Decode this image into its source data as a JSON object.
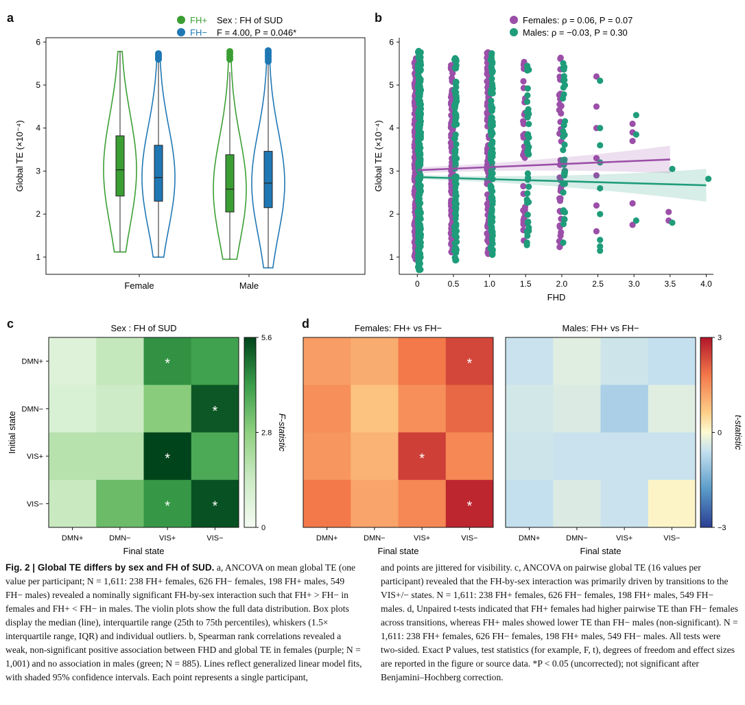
{
  "colors": {
    "fh_pos": "#3a9e32",
    "fh_neg": "#1f77b4",
    "females": "#9b4fa8",
    "males": "#1f9c7a"
  },
  "panel_a": {
    "letter": "a",
    "legend": {
      "fh_pos": "FH+",
      "fh_neg": "FH−",
      "test_title": "Sex : FH of SUD",
      "test_stat": "F = 4.00, P = 0.046*"
    }
  },
  "panel_b": {
    "letter": "b",
    "legend": {
      "females": "Females: ρ = 0.06, P = 0.07",
      "males": "Males: ρ = −0.03, P = 0.30"
    }
  },
  "panel_c": {
    "letter": "c"
  },
  "panel_d": {
    "letter": "d"
  },
  "chart_data": [
    {
      "type": "violin",
      "panel": "a",
      "title": "",
      "xlabel": "",
      "ylabel": "Global TE (×10⁻⁴)",
      "ylim": [
        0.6,
        6.1
      ],
      "yticks": [
        "1",
        "2",
        "3",
        "4",
        "5",
        "6"
      ],
      "categories": [
        "Female",
        "Male"
      ],
      "series": [
        {
          "name": "FH+",
          "groups": [
            {
              "category": "Female",
              "min": 1.12,
              "q1": 2.42,
              "median": 3.03,
              "q3": 3.82,
              "max": 5.78,
              "outliers": []
            },
            {
              "category": "Male",
              "min": 0.95,
              "q1": 2.05,
              "median": 2.58,
              "q3": 3.38,
              "max": 5.3,
              "outliers": [
                5.6,
                5.65,
                5.72,
                5.78
              ]
            }
          ]
        },
        {
          "name": "FH−",
          "groups": [
            {
              "category": "Female",
              "min": 1.0,
              "q1": 2.3,
              "median": 2.85,
              "q3": 3.6,
              "max": 5.55,
              "outliers": [
                5.6,
                5.63,
                5.66,
                5.7,
                5.73
              ]
            },
            {
              "category": "Male",
              "min": 0.75,
              "q1": 2.15,
              "median": 2.72,
              "q3": 3.46,
              "max": 5.5,
              "outliers": [
                5.55,
                5.6,
                5.65,
                5.7,
                5.75,
                5.8
              ]
            }
          ]
        }
      ]
    },
    {
      "type": "scatter",
      "panel": "b",
      "title": "",
      "xlabel": "FHD",
      "ylabel": "Global TE (×10⁻⁴)",
      "xlim": [
        -0.25,
        4.1
      ],
      "ylim": [
        0.6,
        6.1
      ],
      "xticks": [
        "0",
        "0.5",
        "1.0",
        "1.5",
        "2.0",
        "2.5",
        "3.0",
        "3.5",
        "4.0"
      ],
      "yticks": [
        "1",
        "2",
        "3",
        "4",
        "5",
        "6"
      ],
      "series": [
        {
          "name": "Females",
          "fit": {
            "x": [
              0,
              3.5
            ],
            "y": [
              3.02,
              3.27
            ]
          },
          "ci_halfwidth": [
            0.07,
            0.32
          ],
          "columns": [
            {
              "x": 0,
              "ymin": 0.95,
              "ymax": 5.75
            },
            {
              "x": 0.5,
              "ymin": 1.0,
              "ymax": 5.5
            },
            {
              "x": 1.0,
              "ymin": 1.05,
              "ymax": 5.8
            },
            {
              "x": 1.5,
              "ymin": 1.3,
              "ymax": 5.6
            },
            {
              "x": 2.0,
              "ymin": 1.2,
              "ymax": 5.7
            }
          ],
          "points": [
            [
              2.5,
              5.2
            ],
            [
              2.5,
              4.5
            ],
            [
              2.5,
              4.0
            ],
            [
              2.5,
              3.3
            ],
            [
              2.5,
              2.9
            ],
            [
              2.5,
              2.2
            ],
            [
              2.5,
              1.6
            ],
            [
              3.0,
              4.1
            ],
            [
              3.0,
              3.9
            ],
            [
              3.0,
              3.7
            ],
            [
              3.0,
              2.25
            ],
            [
              3.0,
              1.75
            ],
            [
              3.5,
              2.05
            ],
            [
              3.5,
              1.85
            ]
          ]
        },
        {
          "name": "Males",
          "fit": {
            "x": [
              0,
              4.0
            ],
            "y": [
              2.86,
              2.67
            ]
          },
          "ci_halfwidth": [
            0.05,
            0.38
          ],
          "columns": [
            {
              "x": 0,
              "ymin": 0.7,
              "ymax": 5.8
            },
            {
              "x": 0.5,
              "ymin": 0.9,
              "ymax": 5.65
            },
            {
              "x": 1.0,
              "ymin": 1.0,
              "ymax": 5.75
            },
            {
              "x": 1.5,
              "ymin": 1.2,
              "ymax": 5.6
            },
            {
              "x": 2.0,
              "ymin": 1.25,
              "ymax": 5.6
            }
          ],
          "points": [
            [
              2.5,
              5.1
            ],
            [
              2.5,
              4.0
            ],
            [
              2.5,
              3.6
            ],
            [
              2.5,
              3.2
            ],
            [
              2.5,
              2.6
            ],
            [
              2.5,
              2.0
            ],
            [
              2.5,
              1.4
            ],
            [
              2.5,
              1.25
            ],
            [
              2.5,
              1.15
            ],
            [
              3.0,
              4.3
            ],
            [
              3.0,
              3.85
            ],
            [
              3.0,
              1.85
            ],
            [
              3.5,
              3.05
            ],
            [
              3.5,
              1.8
            ],
            [
              4.0,
              2.82
            ]
          ]
        }
      ]
    },
    {
      "type": "heatmap",
      "panel": "c",
      "title": "Sex : FH of SUD",
      "xlabel": "Final state",
      "ylabel": "Initial state",
      "x_categories": [
        "DMN+",
        "DMN−",
        "VIS+",
        "VIS−"
      ],
      "y_categories": [
        "DMN+",
        "DMN−",
        "VIS+",
        "VIS−"
      ],
      "values": [
        [
          0.8,
          1.6,
          4.4,
          4.1
        ],
        [
          1.0,
          1.4,
          2.9,
          5.3
        ],
        [
          1.9,
          1.9,
          5.6,
          3.9
        ],
        [
          1.5,
          3.4,
          4.3,
          5.4
        ]
      ],
      "significant": [
        [
          false,
          false,
          true,
          false
        ],
        [
          false,
          false,
          false,
          true
        ],
        [
          false,
          false,
          true,
          false
        ],
        [
          false,
          false,
          true,
          true
        ]
      ],
      "colorbar": {
        "label": "F-statistic",
        "range": [
          0,
          5.6
        ],
        "ticks": [
          "0",
          "2.8",
          "5.6"
        ]
      }
    },
    {
      "type": "heatmap",
      "panel": "d",
      "title": "Females: FH+ vs FH−",
      "xlabel": "Final state",
      "ylabel": "",
      "x_categories": [
        "DMN+",
        "DMN−",
        "VIS+",
        "VIS−"
      ],
      "y_categories": [
        "DMN+",
        "DMN−",
        "VIS+",
        "VIS−"
      ],
      "values": [
        [
          1.3,
          1.1,
          1.8,
          2.4
        ],
        [
          1.5,
          0.8,
          1.5,
          2.0
        ],
        [
          1.4,
          1.0,
          2.5,
          1.6
        ],
        [
          1.8,
          1.2,
          1.6,
          2.8
        ]
      ],
      "significant": [
        [
          false,
          false,
          false,
          true
        ],
        [
          false,
          false,
          false,
          false
        ],
        [
          false,
          false,
          true,
          false
        ],
        [
          false,
          false,
          false,
          true
        ]
      ],
      "colorbar": {
        "label": "t-statistic",
        "range": [
          -3,
          3
        ],
        "ticks": [
          "3",
          "0",
          "−3"
        ]
      }
    },
    {
      "type": "heatmap",
      "panel": "d",
      "title": "Males: FH+ vs FH−",
      "xlabel": "Final state",
      "ylabel": "",
      "x_categories": [
        "DMN+",
        "DMN−",
        "VIS+",
        "VIS−"
      ],
      "y_categories": [
        "DMN+",
        "DMN−",
        "VIS+",
        "VIS−"
      ],
      "values": [
        [
          -0.55,
          -0.3,
          -0.5,
          -0.6
        ],
        [
          -0.45,
          -0.35,
          -0.9,
          -0.3
        ],
        [
          -0.5,
          -0.55,
          -0.55,
          -0.55
        ],
        [
          -0.6,
          -0.35,
          -0.55,
          0.1
        ]
      ],
      "significant": [
        [
          false,
          false,
          false,
          false
        ],
        [
          false,
          false,
          false,
          false
        ],
        [
          false,
          false,
          false,
          false
        ],
        [
          false,
          false,
          false,
          false
        ]
      ],
      "colorbar": {
        "label": "t-statistic",
        "range": [
          -3,
          3
        ],
        "ticks": [
          "3",
          "0",
          "−3"
        ]
      }
    }
  ],
  "caption": {
    "label": "Fig. 2 | Global TE differs by sex and FH of SUD.",
    "left": " a, ANCOVA on mean global TE (one value per participant; N = 1,611: 238 FH+ females, 626 FH− females, 198 FH+ males, 549 FH− males) revealed a nominally significant FH-by-sex interaction such that FH+ > FH− in females and FH+ < FH− in males. The violin plots show the full data distribution. Box plots display the median (line), interquartile range (25th to 75th percentiles), whiskers (1.5× interquartile range, IQR) and individual outliers. b, Spearman rank correlations revealed a weak, non-significant positive association between FHD and global TE in females (purple; N = 1,001) and no association in males (green; N = 885). Lines reflect generalized linear model fits, with shaded 95% confidence intervals. Each point represents a single participant,",
    "right": "and points are jittered for visibility. c, ANCOVA on pairwise global TE (16 values per participant) revealed that the FH-by-sex interaction was primarily driven by transitions to the VIS+/− states. N = 1,611: 238 FH+ females, 626 FH− females, 198 FH+ males, 549 FH− males. d, Unpaired t-tests indicated that FH+ females had higher pairwise TE than FH− females across transitions, whereas FH+ males showed lower TE than FH− males (non-significant). N = 1,611: 238 FH+ females, 626 FH− females, 198 FH+ males, 549 FH− males. All tests were two-sided. Exact P values, test statistics (for example, F, t), degrees of freedom and effect sizes are reported in the figure or source data. *P < 0.05 (uncorrected); not significant after Benjamini–Hochberg correction."
  }
}
